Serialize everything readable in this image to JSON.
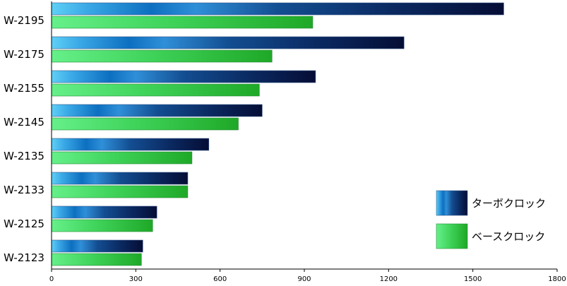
{
  "chart_data": {
    "type": "bar",
    "orientation": "horizontal",
    "categories": [
      "W-2195",
      "W-2175",
      "W-2155",
      "W-2145",
      "W-2135",
      "W-2133",
      "W-2125",
      "W-2123"
    ],
    "series": [
      {
        "name": "ターボクロック",
        "values": [
          1610,
          1255,
          940,
          750,
          560,
          485,
          375,
          325
        ],
        "color": "#0a1a4a"
      },
      {
        "name": "ベースクロック",
        "values": [
          930,
          785,
          740,
          665,
          500,
          485,
          360,
          320
        ],
        "color": "#33cc44"
      }
    ],
    "xlim": [
      0,
      1800
    ],
    "xticks": [
      "0",
      "300",
      "600",
      "900",
      "1200",
      "1500",
      "1800"
    ],
    "legend_position": "bottom-right",
    "grid": false
  }
}
